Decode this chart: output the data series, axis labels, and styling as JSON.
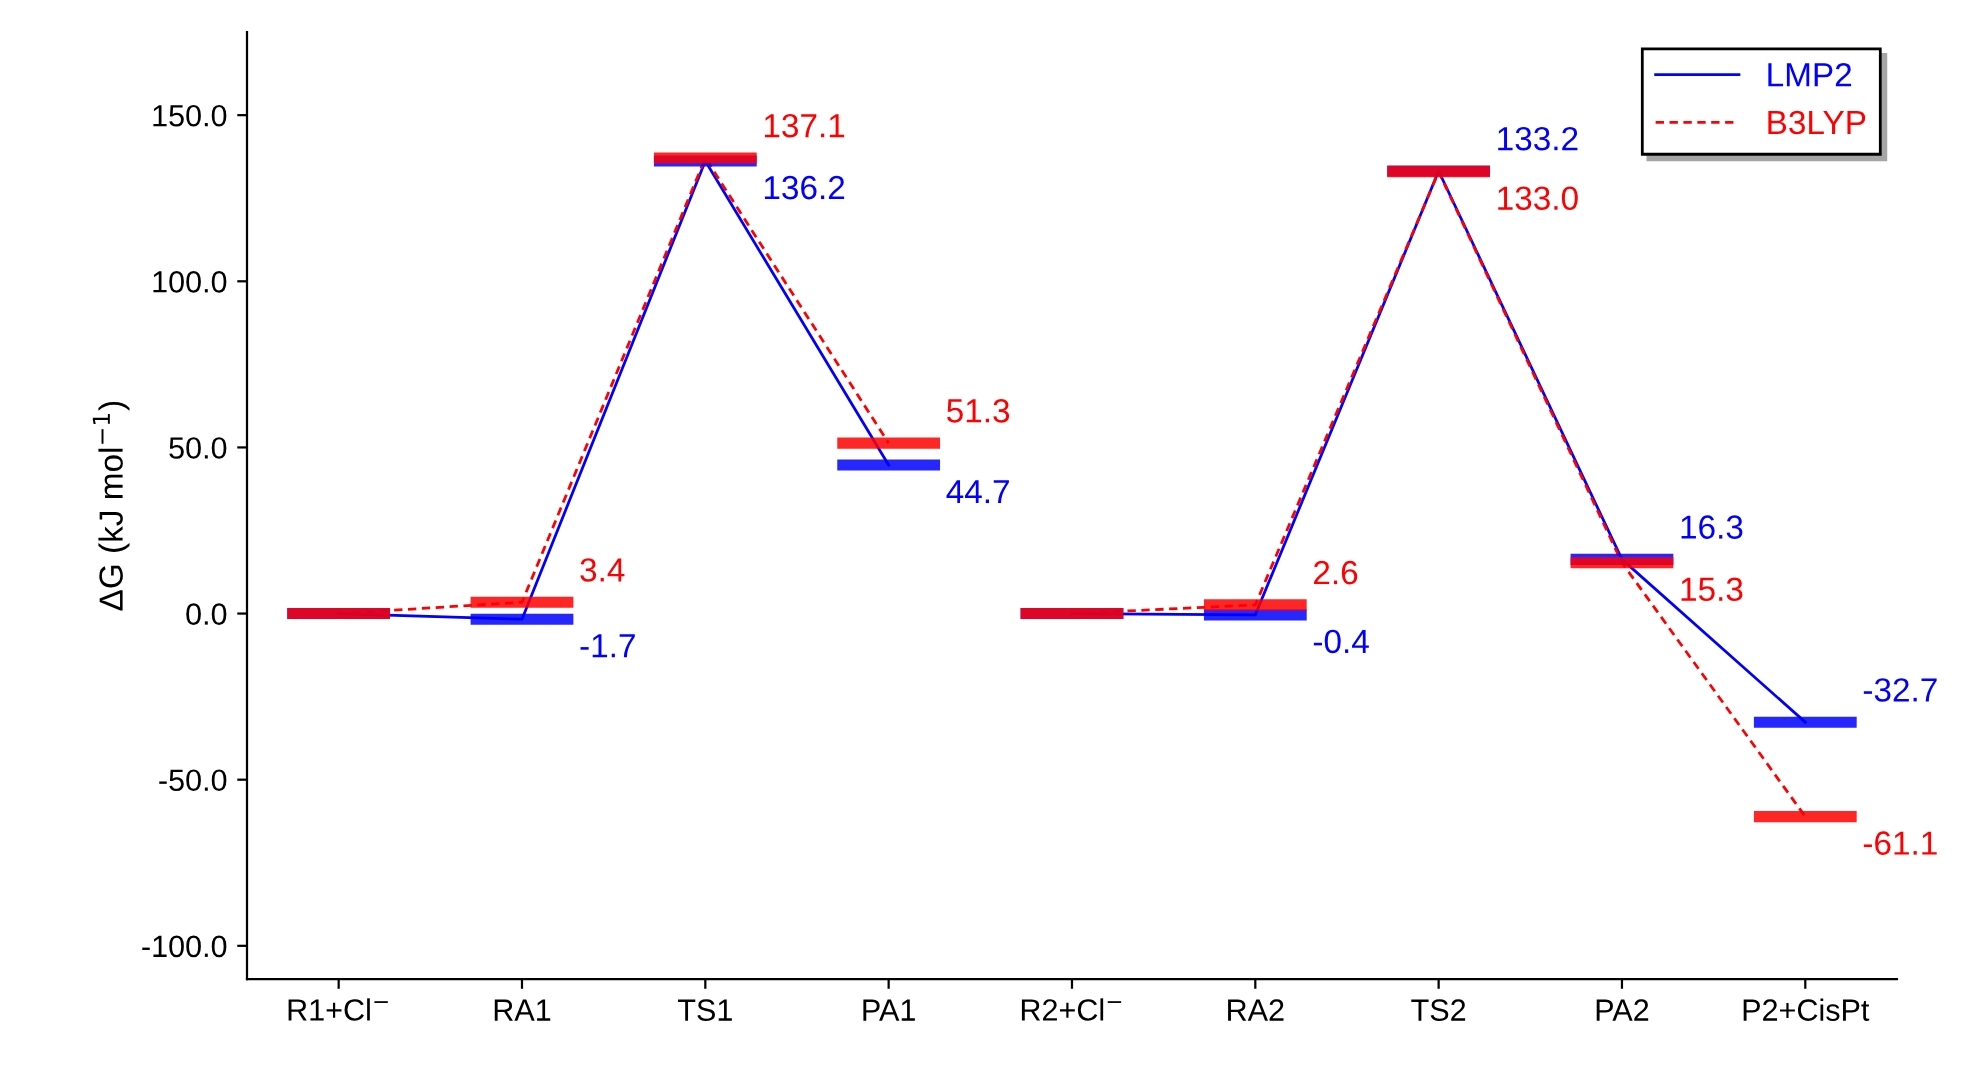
{
  "chart_data": {
    "type": "line",
    "ylabel": "ΔG (kJ mol$^{−1}$)",
    "categories": [
      "R1+Cl$^{−}$",
      "RA1",
      "TS1",
      "PA1",
      "R2+Cl$^{−}$",
      "RA2",
      "TS2",
      "PA2",
      "P2+CisPt"
    ],
    "series": [
      {
        "name": "LMP2",
        "color": "#0000ff",
        "line_style": "solid",
        "values": [
          0,
          -1.7,
          136.2,
          44.7,
          null,
          null,
          null,
          null,
          null
        ],
        "value_labels": [
          null,
          "-1.7",
          "136.2",
          "44.7",
          null,
          null,
          null,
          null,
          null
        ]
      },
      {
        "name": "B3LYP",
        "color": "#ff0000",
        "line_style": "dashed",
        "values": [
          0,
          3.4,
          137.1,
          51.3,
          null,
          null,
          null,
          null,
          null
        ],
        "value_labels": [
          null,
          "3.4",
          "137.1",
          "51.3",
          null,
          null,
          null,
          null,
          null
        ]
      },
      {
        "color": "#0000ff",
        "line_style": "solid",
        "values": [
          null,
          null,
          null,
          null,
          0,
          -0.4,
          133.2,
          16.3,
          -32.7
        ],
        "value_labels": [
          null,
          null,
          null,
          null,
          null,
          "-0.4",
          "133.2",
          "16.3",
          "-32.7"
        ]
      },
      {
        "color": "#ff0000",
        "line_style": "dashed",
        "values": [
          null,
          null,
          null,
          null,
          0,
          2.6,
          133.0,
          15.3,
          -61.1
        ],
        "value_labels": [
          null,
          null,
          null,
          null,
          null,
          "2.6",
          "133.0",
          "15.3",
          "-61.1"
        ]
      }
    ],
    "ylim": [
      -110,
      175
    ],
    "yticks": [
      {
        "value": -100,
        "label": "-100.0"
      },
      {
        "value": -50,
        "label": "-50.0"
      },
      {
        "value": 0,
        "label": "0.0"
      },
      {
        "value": 50,
        "label": "50.0"
      },
      {
        "value": 100,
        "label": "100.0"
      },
      {
        "value": 150,
        "label": "150.0"
      }
    ],
    "grid": false,
    "legend": "top right"
  }
}
